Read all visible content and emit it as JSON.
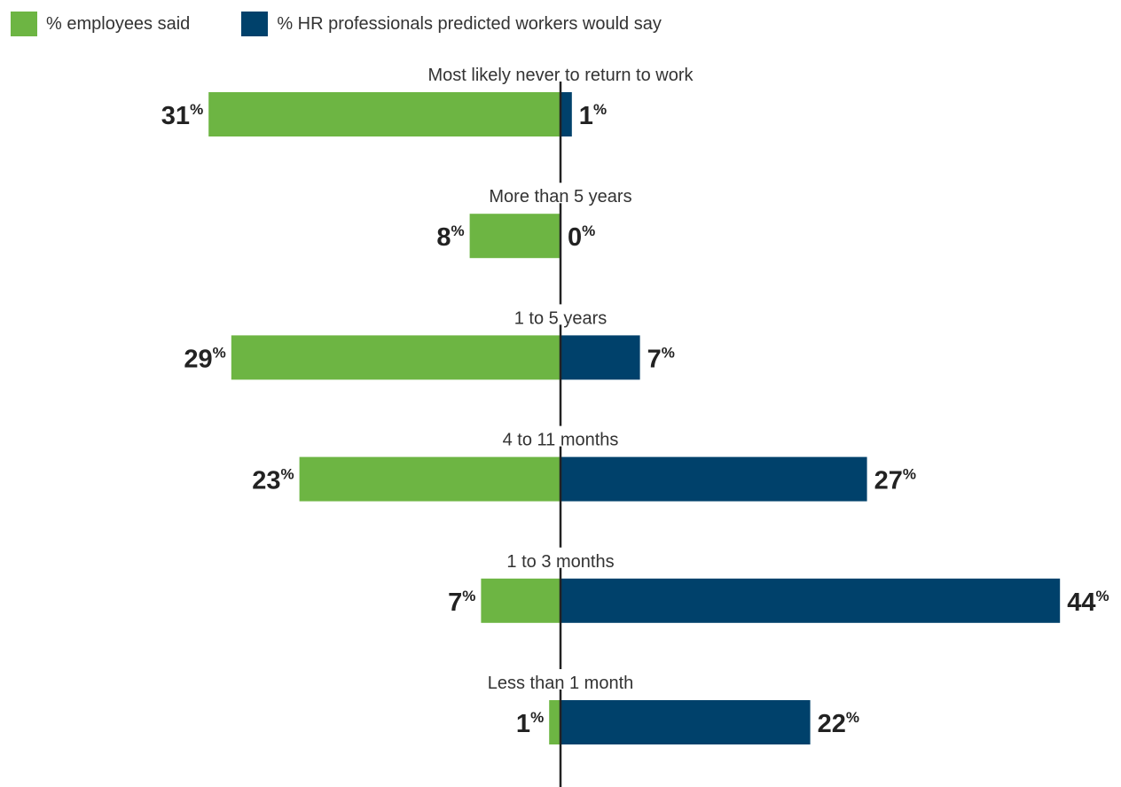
{
  "legend": {
    "employees_label": "% employees said",
    "hr_label": "% HR professionals predicted workers would say"
  },
  "colors": {
    "employees": "#6db543",
    "hr": "#00416b",
    "axis": "#222222"
  },
  "chart_data": {
    "type": "bar",
    "orientation": "diverging-horizontal",
    "categories": [
      "Most likely never to return to work",
      "More than 5 years",
      "1 to 5 years",
      "4 to 11 months",
      "1 to 3 months",
      "Less than 1 month"
    ],
    "series": [
      {
        "name": "% employees said",
        "side": "left",
        "values": [
          31,
          8,
          29,
          23,
          7,
          1
        ]
      },
      {
        "name": "% HR professionals predicted workers would say",
        "side": "right",
        "values": [
          1,
          0,
          7,
          27,
          44,
          22
        ]
      }
    ],
    "unit": "%",
    "title": "",
    "xlabel": "",
    "ylabel": "",
    "legend_position": "top-left",
    "grid": false
  }
}
